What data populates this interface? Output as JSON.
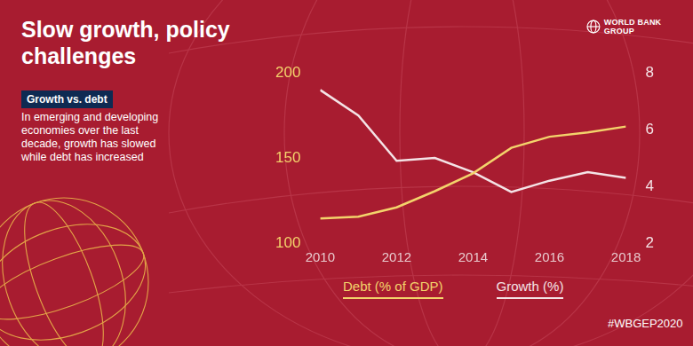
{
  "chart_data": {
    "type": "line",
    "title": "Slow growth, policy challenges",
    "subtitle": "Growth vs. debt",
    "text": "In emerging and developing economies over the last decade, growth has slowed while debt has increased",
    "x": [
      2010,
      2011,
      2012,
      2013,
      2014,
      2015,
      2016,
      2017,
      2018
    ],
    "xlim": [
      2010,
      2018
    ],
    "xticks": [
      2010,
      2012,
      2014,
      2016,
      2018
    ],
    "ylim": [
      100,
      200
    ],
    "yticks": [
      100,
      150,
      200
    ],
    "y2lim": [
      2,
      8
    ],
    "y2ticks": [
      2,
      4,
      6,
      8
    ],
    "series": [
      {
        "name": "Debt (% of GDP)",
        "color": "#f3d36b",
        "values": [
          114.5,
          115.5,
          121,
          130.5,
          141,
          156,
          162.5,
          165,
          168.5
        ]
      },
      {
        "name": "Growth (%)",
        "color": "#f4e3e6",
        "axis": "y2",
        "values": [
          7.4,
          6.5,
          4.9,
          5.0,
          4.5,
          3.8,
          4.2,
          4.5,
          4.3
        ]
      }
    ],
    "grid": false,
    "legend": "bottom"
  },
  "branding": {
    "logo": "WORLD BANK GROUP",
    "hashtag": "#WBGEP2020"
  }
}
